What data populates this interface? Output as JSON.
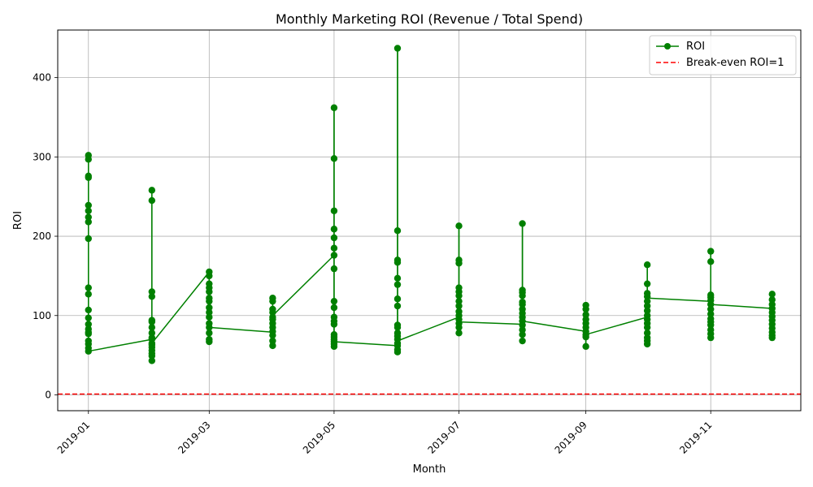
{
  "chart_data": {
    "type": "line",
    "title": "Monthly Marketing ROI (Revenue / Total Spend)",
    "xlabel": "Month",
    "ylabel": "ROI",
    "xlim": [
      "2018-12-17",
      "2019-12-15"
    ],
    "ylim": [
      -20,
      460
    ],
    "xticks": [
      "2019-01",
      "2019-03",
      "2019-05",
      "2019-07",
      "2019-09",
      "2019-11"
    ],
    "yticks": [
      0,
      100,
      200,
      300,
      400
    ],
    "grid": true,
    "legend_position": "top-right",
    "reference_line": {
      "label": "Break-even ROI=1",
      "y": 1,
      "color": "#ff0000",
      "style": "dashed"
    },
    "series": [
      {
        "name": "ROI",
        "color": "#008000",
        "marker": "circle",
        "points": [
          {
            "x": "2019-01",
            "values": [
              302,
              297,
              276,
              274,
              239,
              232,
              224,
              218,
              197,
              135,
              127,
              107,
              97,
              89,
              83,
              79,
              77,
              68,
              64,
              59,
              55
            ]
          },
          {
            "x": "2019-02",
            "values": [
              43,
              60,
              56,
              65,
              63,
              258,
              245,
              130,
              124,
              94,
              92,
              85,
              78,
              72,
              70,
              52,
              49
            ]
          },
          {
            "x": "2019-03",
            "values": [
              155,
              150,
              140,
              135,
              130,
              122,
              118,
              110,
              104,
              98,
              90,
              85,
              78,
              70,
              67
            ]
          },
          {
            "x": "2019-04",
            "values": [
              122,
              118,
              108,
              104,
              98,
              95,
              90,
              85,
              80,
              75,
              68,
              62
            ]
          },
          {
            "x": "2019-05",
            "values": [
              362,
              298,
              232,
              209,
              198,
              185,
              176,
              159,
              118,
              110,
              98,
              93,
              89,
              76,
              73,
              70,
              67,
              64,
              61
            ]
          },
          {
            "x": "2019-06",
            "values": [
              437,
              207,
              170,
              167,
              147,
              139,
              121,
              112,
              88,
              85,
              78,
              74,
              70,
              65,
              62,
              57,
              54
            ]
          },
          {
            "x": "2019-07",
            "values": [
              213,
              170,
              166,
              135,
              130,
              125,
              118,
              112,
              105,
              100,
              95,
              90,
              85,
              78
            ]
          },
          {
            "x": "2019-08",
            "values": [
              216,
              132,
              129,
              125,
              117,
              114,
              108,
              103,
              98,
              93,
              88,
              82,
              76,
              68
            ]
          },
          {
            "x": "2019-09",
            "values": [
              113,
              108,
              101,
              95,
              90,
              85,
              80,
              76,
              73,
              61
            ]
          },
          {
            "x": "2019-10",
            "values": [
              164,
              140,
              128,
              124,
              118,
              112,
              106,
              100,
              95,
              90,
              85,
              78,
              72,
              68,
              64
            ]
          },
          {
            "x": "2019-11",
            "values": [
              181,
              168,
              126,
              123,
              119,
              114,
              108,
              102,
              96,
              92,
              88,
              82,
              77,
              72
            ]
          },
          {
            "x": "2019-12",
            "values": [
              127,
              120,
              114,
              109,
              104,
              99,
              94,
              89,
              84,
              79,
              75,
              72
            ]
          }
        ],
        "path": [
          {
            "x": "2019-01",
            "y": 302
          },
          {
            "x": "2019-01",
            "y": 55
          },
          {
            "x": "2019-02",
            "y": 70
          },
          {
            "x": "2019-02",
            "y": 258
          },
          {
            "x": "2019-02",
            "y": 43
          },
          {
            "x": "2019-02",
            "y": 65
          },
          {
            "x": "2019-03",
            "y": 155
          },
          {
            "x": "2019-03",
            "y": 85
          },
          {
            "x": "2019-04",
            "y": 79
          },
          {
            "x": "2019-04",
            "y": 122
          },
          {
            "x": "2019-04",
            "y": 100
          },
          {
            "x": "2019-05",
            "y": 176
          },
          {
            "x": "2019-05",
            "y": 362
          },
          {
            "x": "2019-05",
            "y": 67
          },
          {
            "x": "2019-06",
            "y": 62
          },
          {
            "x": "2019-06",
            "y": 437
          },
          {
            "x": "2019-06",
            "y": 54
          },
          {
            "x": "2019-06",
            "y": 68
          },
          {
            "x": "2019-07",
            "y": 98
          },
          {
            "x": "2019-07",
            "y": 213
          },
          {
            "x": "2019-07",
            "y": 92
          },
          {
            "x": "2019-08",
            "y": 89
          },
          {
            "x": "2019-08",
            "y": 216
          },
          {
            "x": "2019-08",
            "y": 67
          },
          {
            "x": "2019-08",
            "y": 93
          },
          {
            "x": "2019-09",
            "y": 80
          },
          {
            "x": "2019-09",
            "y": 113
          },
          {
            "x": "2019-09",
            "y": 61
          },
          {
            "x": "2019-09",
            "y": 76
          },
          {
            "x": "2019-10",
            "y": 98
          },
          {
            "x": "2019-10",
            "y": 164
          },
          {
            "x": "2019-10",
            "y": 64
          },
          {
            "x": "2019-10",
            "y": 122
          },
          {
            "x": "2019-11",
            "y": 118
          },
          {
            "x": "2019-11",
            "y": 181
          },
          {
            "x": "2019-11",
            "y": 72
          },
          {
            "x": "2019-11",
            "y": 114
          },
          {
            "x": "2019-12",
            "y": 109
          },
          {
            "x": "2019-12",
            "y": 127
          },
          {
            "x": "2019-12",
            "y": 72
          }
        ]
      }
    ]
  }
}
